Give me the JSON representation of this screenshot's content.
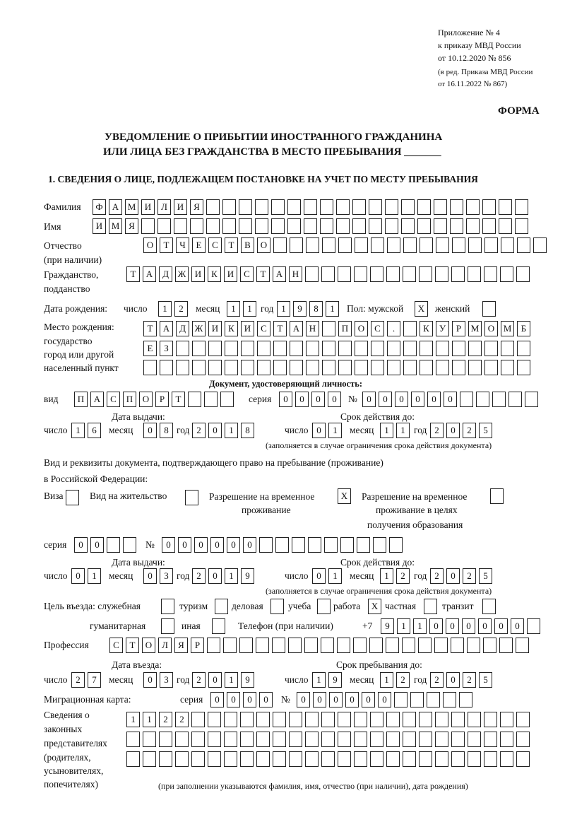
{
  "header": {
    "appendix": "Приложение № 4",
    "order": "к приказу МВД России",
    "order_date": "от 10.12.2020 № 856",
    "revision1": "(в ред. Приказа МВД России",
    "revision2": "от 16.11.2022 № 867)",
    "form_label": "ФОРМА",
    "title1": "УВЕДОМЛЕНИЕ О ПРИБЫТИИ ИНОСТРАННОГО ГРАЖДАНИНА",
    "title2": "ИЛИ ЛИЦА БЕЗ ГРАЖДАНСТВА В МЕСТО ПРЕБЫВАНИЯ _______",
    "section1": "1. СВЕДЕНИЯ О ЛИЦЕ, ПОДЛЕЖАЩЕМ ПОСТАНОВКЕ НА УЧЕТ ПО МЕСТУ ПРЕБЫВАНИЯ"
  },
  "labels": {
    "surname": "Фамилия",
    "name": "Имя",
    "patronymic1": "Отчество",
    "patronymic2": "(при наличии)",
    "citizenship1": "Гражданство,",
    "citizenship2": "подданство",
    "birth_date": "Дата рождения:",
    "day": "число",
    "month": "месяц",
    "year": "год",
    "sex": "Пол: мужской",
    "female": "женский",
    "birthplace1": "Место рождения:",
    "birthplace2": "государство",
    "birthplace3": "город или другой",
    "birthplace4": "населенный пункт",
    "id_doc": "Документ, удостоверяющий личность:",
    "kind": "вид",
    "series": "серия",
    "number": "№",
    "issue_date": "Дата выдачи:",
    "valid_until": "Срок действия до:",
    "validity_note": "(заполняется в случае ограничения срока действия документа)",
    "right_doc1": "Вид и реквизиты документа, подтверждающего право на пребывание (проживание)",
    "right_doc2": "в Российской Федерации:",
    "visa": "Виза",
    "residence": "Вид на жительство",
    "trp1": "Разрешение на временное",
    "trp2": "проживание",
    "trp_edu1": "Разрешение на временное",
    "trp_edu2": "проживание в целях",
    "trp_edu3": "получения образования",
    "purpose": "Цель въезда: служебная",
    "tourism": "туризм",
    "business": "деловая",
    "study": "учеба",
    "work": "работа",
    "private": "частная",
    "transit": "транзит",
    "humanitarian": "гуманитарная",
    "other": "иная",
    "phone": "Телефон (при наличии)",
    "phone_prefix": "+7",
    "profession": "Профессия",
    "entry_date": "Дата въезда:",
    "stay_until": "Срок пребывания до:",
    "migration_card": "Миграционная карта:",
    "reps1": "Сведения о",
    "reps2": "законных",
    "reps3": "представителях",
    "reps4": "(родителях,",
    "reps5": "усыновителях,",
    "reps6": "попечителях)",
    "reps_note": "(при заполнении указываются фамилия, имя, отчество (при наличии), дата рождения)"
  },
  "fields": {
    "surname": [
      "Ф",
      "А",
      "М",
      "И",
      "Л",
      "И",
      "Я",
      "",
      "",
      "",
      "",
      "",
      "",
      "",
      "",
      "",
      "",
      "",
      "",
      "",
      "",
      "",
      "",
      "",
      "",
      "",
      ""
    ],
    "name": [
      "И",
      "М",
      "Я",
      "",
      "",
      "",
      "",
      "",
      "",
      "",
      "",
      "",
      "",
      "",
      "",
      "",
      "",
      "",
      "",
      "",
      "",
      "",
      "",
      "",
      "",
      "",
      ""
    ],
    "patronymic": [
      "О",
      "Т",
      "Ч",
      "Е",
      "С",
      "Т",
      "В",
      "О",
      "",
      "",
      "",
      "",
      "",
      "",
      "",
      "",
      "",
      "",
      "",
      "",
      "",
      "",
      "",
      "",
      ""
    ],
    "citizenship": [
      "Т",
      "А",
      "Д",
      "Ж",
      "И",
      "К",
      "И",
      "С",
      "Т",
      "А",
      "Н",
      "",
      "",
      "",
      "",
      "",
      "",
      "",
      "",
      "",
      "",
      "",
      "",
      "",
      ""
    ],
    "birth_day": [
      "1",
      "2"
    ],
    "birth_month": [
      "1",
      "1"
    ],
    "birth_year": [
      "1",
      "9",
      "8",
      "1"
    ],
    "sex_male": [
      "X"
    ],
    "sex_female": [
      ""
    ],
    "birthplace_1": [
      "Т",
      "А",
      "Д",
      "Ж",
      "И",
      "К",
      "И",
      "С",
      "Т",
      "А",
      "Н",
      "",
      "П",
      "О",
      "С",
      ".",
      "",
      "К",
      "У",
      "Р",
      "М",
      "О",
      "М",
      "Б"
    ],
    "birthplace_2": [
      "Е",
      "З",
      "",
      "",
      "",
      "",
      "",
      "",
      "",
      "",
      "",
      "",
      "",
      "",
      "",
      "",
      "",
      "",
      "",
      "",
      "",
      "",
      "",
      ""
    ],
    "birthplace_3": [
      "",
      "",
      "",
      "",
      "",
      "",
      "",
      "",
      "",
      "",
      "",
      "",
      "",
      "",
      "",
      "",
      "",
      "",
      "",
      "",
      "",
      "",
      "",
      ""
    ],
    "id_kind": [
      "П",
      "А",
      "С",
      "П",
      "О",
      "Р",
      "Т",
      "",
      "",
      ""
    ],
    "id_series": [
      "0",
      "0",
      "0",
      "0"
    ],
    "id_number": [
      "0",
      "0",
      "0",
      "0",
      "0",
      "0",
      "",
      "",
      "",
      "",
      ""
    ],
    "id_issue_day": [
      "1",
      "6"
    ],
    "id_issue_month": [
      "0",
      "8"
    ],
    "id_issue_year": [
      "2",
      "0",
      "1",
      "8"
    ],
    "id_valid_day": [
      "0",
      "1"
    ],
    "id_valid_month": [
      "1",
      "1"
    ],
    "id_valid_year": [
      "2",
      "0",
      "2",
      "5"
    ],
    "chk_visa": [
      ""
    ],
    "chk_residence": [
      ""
    ],
    "chk_trp": [
      "X"
    ],
    "chk_trp_edu": [
      ""
    ],
    "rd_series": [
      "0",
      "0",
      "",
      ""
    ],
    "rd_number": [
      "0",
      "0",
      "0",
      "0",
      "0",
      "0",
      "",
      "",
      "",
      "",
      "",
      "",
      "",
      "",
      ""
    ],
    "rd_issue_day": [
      "0",
      "1"
    ],
    "rd_issue_month": [
      "0",
      "3"
    ],
    "rd_issue_year": [
      "2",
      "0",
      "1",
      "9"
    ],
    "rd_valid_day": [
      "0",
      "1"
    ],
    "rd_valid_month": [
      "1",
      "2"
    ],
    "rd_valid_year": [
      "2",
      "0",
      "2",
      "5"
    ],
    "p_service": [
      ""
    ],
    "p_tourism": [
      ""
    ],
    "p_business": [
      ""
    ],
    "p_study": [
      ""
    ],
    "p_work": [
      "X"
    ],
    "p_private": [
      ""
    ],
    "p_transit": [
      ""
    ],
    "p_humanitarian": [
      ""
    ],
    "p_other": [
      ""
    ],
    "phone": [
      "9",
      "1",
      "1",
      "0",
      "0",
      "0",
      "0",
      "0",
      "0",
      ""
    ],
    "profession": [
      "С",
      "Т",
      "О",
      "Л",
      "Я",
      "Р",
      "",
      "",
      "",
      "",
      "",
      "",
      "",
      "",
      "",
      "",
      "",
      "",
      "",
      "",
      "",
      "",
      "",
      "",
      "",
      ""
    ],
    "entry_day": [
      "2",
      "7"
    ],
    "entry_month": [
      "0",
      "3"
    ],
    "entry_year": [
      "2",
      "0",
      "1",
      "9"
    ],
    "stay_day": [
      "1",
      "9"
    ],
    "stay_month": [
      "1",
      "2"
    ],
    "stay_year": [
      "2",
      "0",
      "2",
      "5"
    ],
    "mc_series": [
      "0",
      "0",
      "0",
      "0"
    ],
    "mc_number": [
      "0",
      "0",
      "0",
      "0",
      "0",
      "0",
      "",
      "",
      "",
      "",
      ""
    ],
    "reps_1": [
      "1",
      "1",
      "2",
      "2",
      "",
      "",
      "",
      "",
      "",
      "",
      "",
      "",
      "",
      "",
      "",
      "",
      "",
      "",
      "",
      "",
      "",
      "",
      "",
      "",
      ""
    ],
    "reps_2": [
      "",
      "",
      "",
      "",
      "",
      "",
      "",
      "",
      "",
      "",
      "",
      "",
      "",
      "",
      "",
      "",
      "",
      "",
      "",
      "",
      "",
      "",
      "",
      "",
      ""
    ],
    "reps_3": [
      "",
      "",
      "",
      "",
      "",
      "",
      "",
      "",
      "",
      "",
      "",
      "",
      "",
      "",
      "",
      "",
      "",
      "",
      "",
      "",
      "",
      "",
      "",
      "",
      ""
    ]
  }
}
